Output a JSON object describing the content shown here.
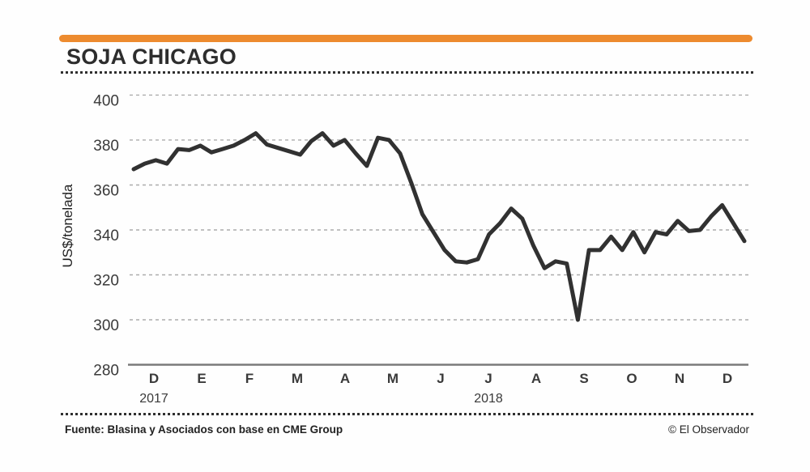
{
  "header": {
    "title": "SOJA CHICAGO"
  },
  "footer": {
    "source": "Fuente: Blasina y Asociados con base en CME Group",
    "copyright": "© El Observador"
  },
  "colors": {
    "accent_bar": "#ed8b2f",
    "line": "#313131",
    "grid": "#ababab",
    "axis": "#7a7a7a",
    "tick_text": "#3a3a3a",
    "title_text": "#2d2d2d"
  },
  "chart_data": {
    "type": "line",
    "title": "SOJA CHICAGO",
    "xlabel": "",
    "ylabel": "US$/tonelada",
    "ylim": [
      280,
      405
    ],
    "y_ticks": [
      400,
      380,
      360,
      340,
      320,
      300,
      280
    ],
    "grid": "horizontal dashed gridlines on",
    "legend": "none",
    "x_axis": {
      "months": [
        "D",
        "E",
        "F",
        "M",
        "A",
        "M",
        "J",
        "J",
        "A",
        "S",
        "O",
        "N",
        "D"
      ],
      "years": [
        {
          "label": "2017",
          "month_index": 0
        },
        {
          "label": "2018",
          "month_index": 7
        }
      ]
    },
    "series": [
      {
        "name": "Soja Chicago",
        "unit": "US$/tonelada",
        "values": [
          367,
          369.5,
          371,
          369.5,
          376,
          375.5,
          377.5,
          374.5,
          376,
          377.5,
          380,
          383,
          378,
          376.5,
          375,
          373.5,
          379.5,
          383,
          377.5,
          380,
          374,
          368.5,
          381,
          380,
          374,
          361,
          347,
          339,
          331,
          326,
          325.5,
          327,
          338,
          343,
          349.5,
          345,
          333,
          323,
          326,
          325,
          300,
          331,
          331,
          337,
          331,
          339,
          330,
          339,
          338,
          344,
          339.5,
          340,
          346,
          351,
          343,
          335
        ]
      }
    ]
  }
}
